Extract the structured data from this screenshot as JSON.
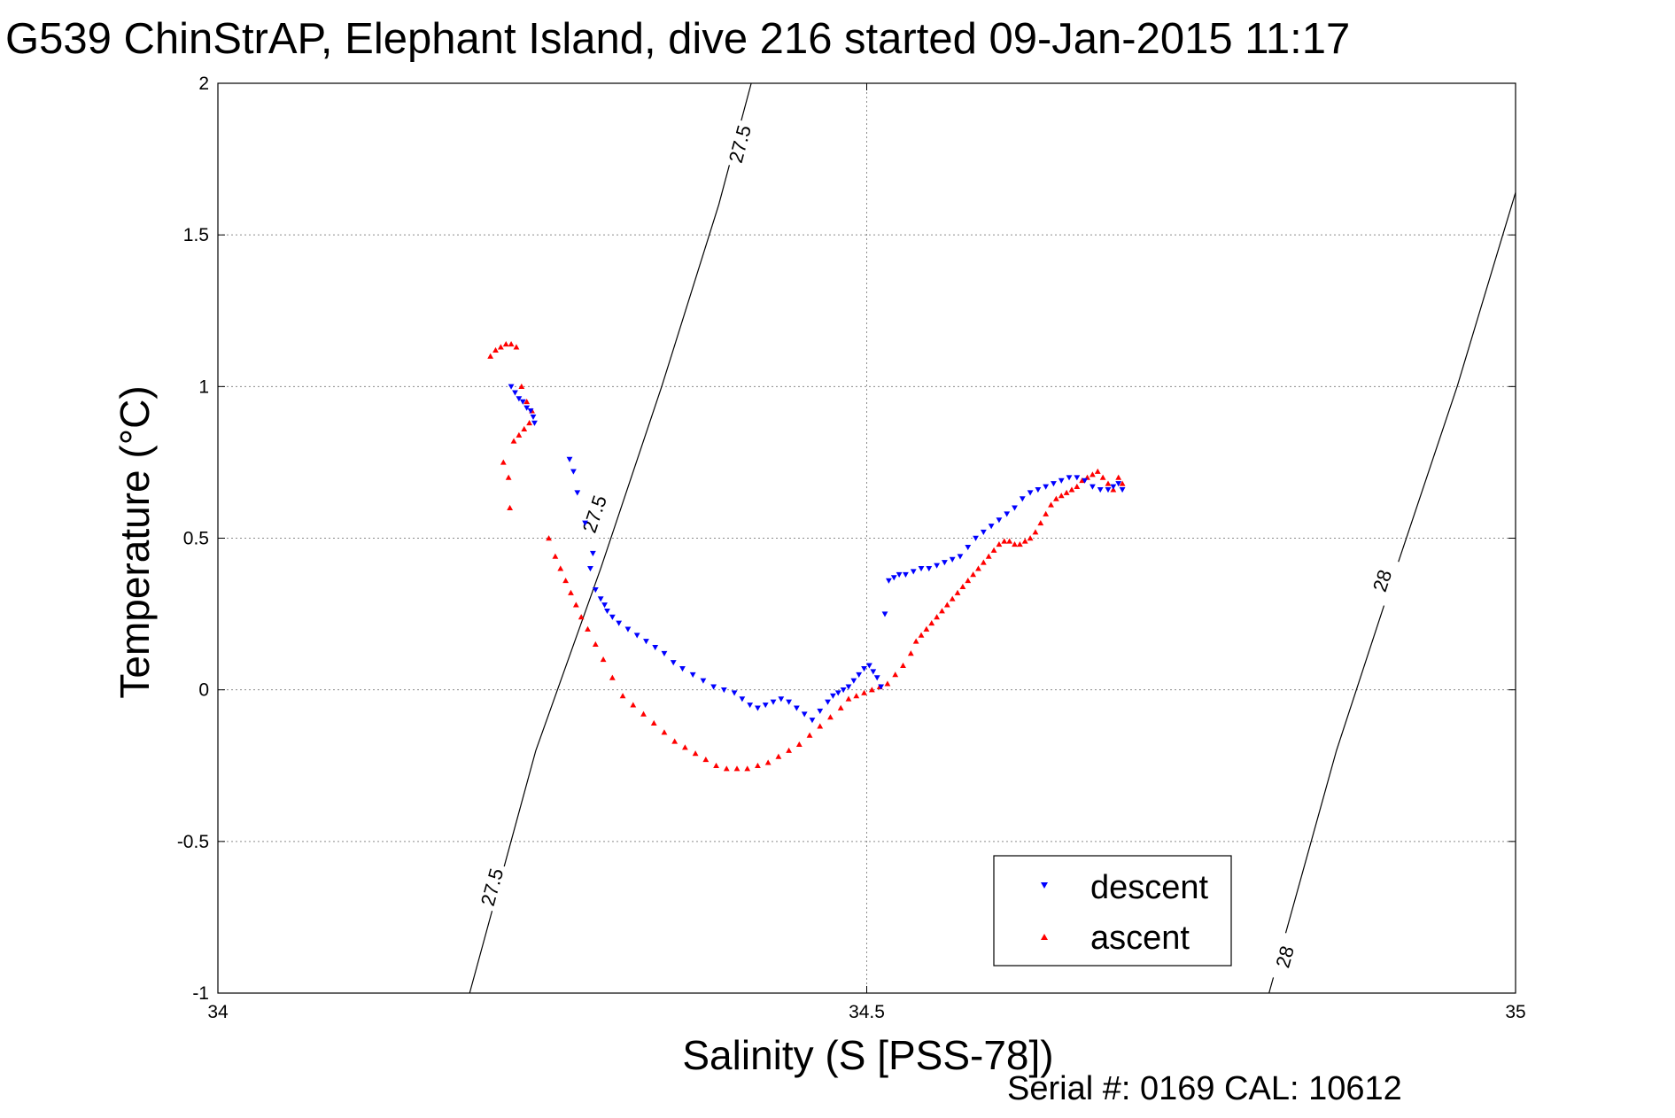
{
  "chart_data": {
    "type": "scatter",
    "title": "G539 ChinStrAP, Elephant Island, dive 216 started 09-Jan-2015 11:17",
    "xlabel": "Salinity (S [PSS-78])",
    "ylabel": "Temperature (°C)",
    "xlim": [
      34,
      35
    ],
    "ylim": [
      -1,
      2
    ],
    "xticks": [
      34,
      34.5,
      35
    ],
    "xtick_labels": [
      "34",
      "34.5",
      "35"
    ],
    "yticks": [
      -1,
      -0.5,
      0,
      0.5,
      1,
      1.5,
      2
    ],
    "ytick_labels": [
      "-1",
      "-0.5",
      "0",
      "0.5",
      "1",
      "1.5",
      "2"
    ],
    "grid": true,
    "legend_position": "bottom-right",
    "footer": "Serial #: 0169 CAL: 10612",
    "series": [
      {
        "name": "descent",
        "color": "#0000ff",
        "marker": "triangle-down",
        "x": [
          34.226,
          34.229,
          34.232,
          34.235,
          34.238,
          34.241,
          34.243,
          34.244,
          34.271,
          34.274,
          34.277,
          34.283,
          34.289,
          34.287,
          34.291,
          34.295,
          34.298,
          34.3,
          34.304,
          34.309,
          34.316,
          34.323,
          34.33,
          34.337,
          34.344,
          34.351,
          34.358,
          34.366,
          34.374,
          34.382,
          34.39,
          34.398,
          34.404,
          34.41,
          34.416,
          34.422,
          34.428,
          34.434,
          34.44,
          34.446,
          34.452,
          34.458,
          34.464,
          34.47,
          34.474,
          34.478,
          34.482,
          34.486,
          34.49,
          34.494,
          34.498,
          34.502,
          34.505,
          34.508,
          34.511,
          34.514,
          34.517,
          34.521,
          34.525,
          34.53,
          34.536,
          34.542,
          34.548,
          34.554,
          34.56,
          34.566,
          34.572,
          34.578,
          34.584,
          34.59,
          34.596,
          34.602,
          34.608,
          34.614,
          34.62,
          34.626,
          34.632,
          34.638,
          34.644,
          34.65,
          34.656,
          34.662,
          34.668,
          34.674,
          34.68,
          34.686,
          34.69,
          34.694,
          34.697
        ],
        "y": [
          1.0,
          0.98,
          0.96,
          0.95,
          0.93,
          0.92,
          0.9,
          0.88,
          0.76,
          0.72,
          0.65,
          0.55,
          0.45,
          0.4,
          0.33,
          0.3,
          0.28,
          0.26,
          0.24,
          0.22,
          0.2,
          0.18,
          0.16,
          0.14,
          0.12,
          0.09,
          0.07,
          0.05,
          0.03,
          0.01,
          0.0,
          -0.01,
          -0.03,
          -0.05,
          -0.06,
          -0.05,
          -0.04,
          -0.03,
          -0.04,
          -0.06,
          -0.08,
          -0.1,
          -0.07,
          -0.04,
          -0.02,
          -0.01,
          0.0,
          0.01,
          0.03,
          0.05,
          0.07,
          0.08,
          0.06,
          0.04,
          0.01,
          0.25,
          0.36,
          0.37,
          0.38,
          0.38,
          0.39,
          0.4,
          0.4,
          0.41,
          0.42,
          0.43,
          0.44,
          0.47,
          0.5,
          0.52,
          0.54,
          0.56,
          0.58,
          0.6,
          0.63,
          0.65,
          0.66,
          0.67,
          0.68,
          0.69,
          0.7,
          0.7,
          0.69,
          0.67,
          0.66,
          0.66,
          0.67,
          0.68,
          0.66
        ],
        "note": ""
      },
      {
        "name": "ascent",
        "color": "#ff0000",
        "marker": "triangle-up",
        "x": [
          34.21,
          34.214,
          34.218,
          34.222,
          34.226,
          34.23,
          34.234,
          34.238,
          34.242,
          34.24,
          34.236,
          34.232,
          34.228,
          34.224,
          34.22,
          34.225,
          34.255,
          34.26,
          34.264,
          34.268,
          34.272,
          34.276,
          34.28,
          34.285,
          34.291,
          34.297,
          34.304,
          34.312,
          34.32,
          34.328,
          34.336,
          34.344,
          34.352,
          34.36,
          34.368,
          34.376,
          34.384,
          34.392,
          34.4,
          34.408,
          34.416,
          34.424,
          34.432,
          34.44,
          34.448,
          34.456,
          34.464,
          34.472,
          34.48,
          34.486,
          34.492,
          34.498,
          34.504,
          34.51,
          34.516,
          34.522,
          34.528,
          34.534,
          34.538,
          34.542,
          34.546,
          34.55,
          34.554,
          34.558,
          34.562,
          34.566,
          34.57,
          34.574,
          34.578,
          34.582,
          34.586,
          34.59,
          34.594,
          34.598,
          34.602,
          34.606,
          34.61,
          34.614,
          34.618,
          34.622,
          34.626,
          34.63,
          34.634,
          34.638,
          34.642,
          34.646,
          34.65,
          34.654,
          34.658,
          34.662,
          34.666,
          34.67,
          34.674,
          34.678,
          34.682,
          34.686,
          34.69,
          34.694,
          34.697
        ],
        "y": [
          1.1,
          1.12,
          1.13,
          1.14,
          1.14,
          1.13,
          1.0,
          0.95,
          0.92,
          0.88,
          0.86,
          0.84,
          0.82,
          0.7,
          0.75,
          0.6,
          0.5,
          0.44,
          0.4,
          0.36,
          0.32,
          0.28,
          0.24,
          0.2,
          0.15,
          0.1,
          0.04,
          -0.02,
          -0.05,
          -0.08,
          -0.11,
          -0.14,
          -0.17,
          -0.19,
          -0.21,
          -0.23,
          -0.25,
          -0.26,
          -0.26,
          -0.26,
          -0.25,
          -0.24,
          -0.22,
          -0.2,
          -0.18,
          -0.15,
          -0.12,
          -0.09,
          -0.06,
          -0.03,
          -0.02,
          -0.01,
          0.0,
          0.01,
          0.02,
          0.05,
          0.08,
          0.12,
          0.16,
          0.18,
          0.2,
          0.22,
          0.24,
          0.26,
          0.28,
          0.3,
          0.32,
          0.34,
          0.36,
          0.38,
          0.4,
          0.42,
          0.44,
          0.46,
          0.48,
          0.49,
          0.49,
          0.48,
          0.48,
          0.49,
          0.5,
          0.52,
          0.55,
          0.58,
          0.61,
          0.63,
          0.64,
          0.65,
          0.66,
          0.67,
          0.69,
          0.7,
          0.71,
          0.72,
          0.7,
          0.68,
          0.66,
          0.7,
          0.68
        ],
        "note": ""
      }
    ],
    "contours": [
      {
        "level": "27.5",
        "x": [
          34.194,
          34.245,
          34.295,
          34.342,
          34.386,
          34.411
        ],
        "y": [
          -1.0,
          -0.2,
          0.4,
          1.0,
          1.6,
          2.0
        ],
        "labels": [
          {
            "text": "27.5",
            "at_x": 34.211,
            "at_y": -0.65
          },
          {
            "text": "27.5",
            "at_x": 34.29,
            "at_y": 0.58
          },
          {
            "text": "27.5",
            "at_x": 34.402,
            "at_y": 1.8
          }
        ]
      },
      {
        "level": "28",
        "x": [
          34.81,
          34.862,
          34.908,
          34.955,
          35.0
        ],
        "y": [
          -1.0,
          -0.2,
          0.4,
          1.0,
          1.64
        ],
        "labels": [
          {
            "text": "28",
            "at_x": 34.822,
            "at_y": -0.88
          },
          {
            "text": "28",
            "at_x": 34.897,
            "at_y": 0.36
          }
        ]
      }
    ]
  }
}
